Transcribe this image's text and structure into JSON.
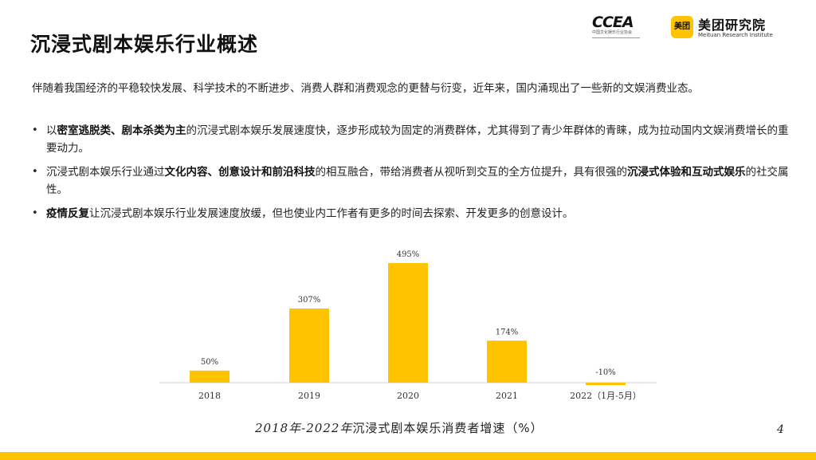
{
  "slide": {
    "title": "沉浸式剧本娱乐行业概述",
    "page_number": "4",
    "caption_prefix": "2018年-2022年",
    "caption_suffix": "沉浸式剧本娱乐消费者增速（%）",
    "accent_color": "#ffc300"
  },
  "logos": {
    "ccea_mark": "CCEA",
    "ccea_sub": "中国文化娱乐行业协会",
    "meituan_badge": "美团",
    "meituan_name": "美团研究院",
    "meituan_en": "Meituan Research Institute"
  },
  "intro": "伴随着我国经济的平稳较快发展、科学技术的不断进步、消费人群和消费观念的更替与衍变，近年来，国内涌现出了一些新的文娱消费业态。",
  "bullets": [
    {
      "segments": [
        {
          "t": "以",
          "b": false
        },
        {
          "t": "密室逃脱类、剧本杀类为主",
          "b": true
        },
        {
          "t": "的沉浸式剧本娱乐发展速度快，逐步形成较为固定的消费群体，尤其得到了青少年群体的青睐，成为拉动国内文娱消费增长的重要动力。",
          "b": false
        }
      ]
    },
    {
      "segments": [
        {
          "t": "沉浸式剧本娱乐行业通过",
          "b": false
        },
        {
          "t": "文化内容、创意设计和前沿科技",
          "b": true
        },
        {
          "t": "的相互融合，带给消费者从视听到交互的全方位提升，具有很强的",
          "b": false
        },
        {
          "t": "沉浸式体验和互动式娱乐",
          "b": true
        },
        {
          "t": "的社交属性。",
          "b": false
        }
      ]
    },
    {
      "segments": [
        {
          "t": "疫情反复",
          "b": true
        },
        {
          "t": "让沉浸式剧本娱乐行业发展速度放缓，但也使业内工作者有更多的时间去探索、开发更多的创意设计。",
          "b": false
        }
      ]
    }
  ],
  "chart_data": {
    "type": "bar",
    "categories": [
      "2018",
      "2019",
      "2020",
      "2021",
      "2022（1月-5月）"
    ],
    "values": [
      50,
      307,
      495,
      174,
      -10
    ],
    "data_labels": [
      "50%",
      "307%",
      "495%",
      "174%",
      "-10%"
    ],
    "title": "2018年-2022年沉浸式剧本娱乐消费者增速（%）",
    "xlabel": "",
    "ylabel": "",
    "ylim": [
      -10,
      495
    ],
    "bar_color": "#ffc300",
    "grid": false,
    "legend": "none"
  }
}
